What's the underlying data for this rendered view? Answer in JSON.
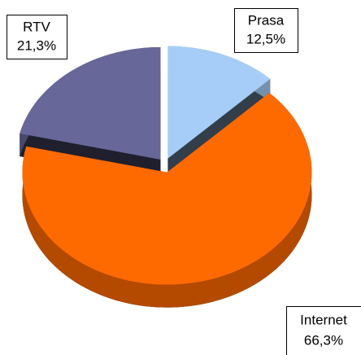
{
  "chart_data": {
    "type": "pie",
    "categories": [
      "Prasa",
      "Internet",
      "RTV"
    ],
    "values": [
      12.5,
      66.3,
      21.3
    ],
    "value_labels": [
      "12,5%",
      "66,3%",
      "21,3%"
    ],
    "colors": [
      "#a6cdf7",
      "#ff6a00",
      "#67679a"
    ]
  }
}
